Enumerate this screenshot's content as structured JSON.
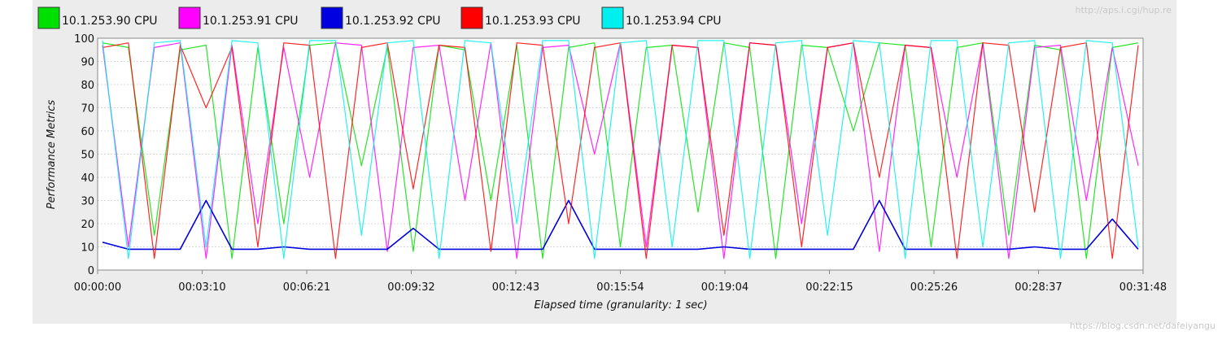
{
  "chart_data": {
    "type": "line",
    "title": "",
    "xlabel": "Elapsed time (granularity: 1 sec)",
    "ylabel": "Performance Metrics",
    "ylim": [
      0,
      100
    ],
    "yticks": [
      0,
      10,
      20,
      30,
      40,
      50,
      60,
      70,
      80,
      90,
      100
    ],
    "x_tick_labels": [
      "00:00:00",
      "00:03:10",
      "00:06:21",
      "00:09:32",
      "00:12:43",
      "00:15:54",
      "00:19:04",
      "00:22:15",
      "00:25:26",
      "00:28:37",
      "00:31:48"
    ],
    "grid": true,
    "legend_position": "top-left",
    "series": [
      {
        "name": "10.1.253.90 CPU",
        "color": "#00e000",
        "values": [
          98,
          96,
          15,
          95,
          97,
          5,
          96,
          20,
          97,
          98,
          45,
          96,
          8,
          97,
          95,
          30,
          97,
          5,
          96,
          98,
          10,
          96,
          97,
          25,
          98,
          96,
          5,
          97,
          96,
          60,
          98,
          97,
          10,
          96,
          98,
          15,
          97,
          95,
          5,
          96,
          98
        ]
      },
      {
        "name": "10.1.253.91 CPU",
        "color": "#ff00ff",
        "values": [
          97,
          10,
          96,
          98,
          5,
          97,
          20,
          96,
          40,
          98,
          97,
          8,
          96,
          97,
          30,
          98,
          5,
          96,
          97,
          50,
          98,
          10,
          97,
          96,
          5,
          98,
          97,
          20,
          96,
          98,
          8,
          97,
          96,
          40,
          98,
          5,
          96,
          97,
          30,
          96,
          45
        ]
      },
      {
        "name": "10.1.253.92 CPU",
        "color": "#0000e0",
        "values": [
          12,
          9,
          9,
          9,
          30,
          9,
          9,
          10,
          9,
          9,
          9,
          9,
          18,
          9,
          9,
          9,
          9,
          9,
          30,
          9,
          9,
          9,
          9,
          9,
          10,
          9,
          9,
          9,
          9,
          9,
          30,
          9,
          9,
          9,
          9,
          9,
          10,
          9,
          9,
          22,
          9
        ]
      },
      {
        "name": "10.1.253.93 CPU",
        "color": "#ff0000",
        "values": [
          96,
          98,
          5,
          97,
          70,
          96,
          10,
          98,
          97,
          5,
          96,
          98,
          35,
          97,
          96,
          8,
          98,
          97,
          20,
          96,
          98,
          5,
          97,
          96,
          15,
          98,
          97,
          10,
          96,
          98,
          40,
          97,
          96,
          5,
          98,
          97,
          25,
          96,
          98,
          5,
          97
        ]
      },
      {
        "name": "10.1.253.94 CPU",
        "color": "#00f0f0",
        "values": [
          99,
          5,
          98,
          99,
          10,
          99,
          98,
          5,
          99,
          99,
          15,
          98,
          99,
          5,
          99,
          98,
          20,
          99,
          99,
          5,
          98,
          99,
          10,
          99,
          99,
          5,
          98,
          99,
          15,
          99,
          98,
          5,
          99,
          99,
          10,
          98,
          99,
          5,
          99,
          98,
          10
        ]
      }
    ]
  },
  "watermarks": {
    "top_right": "http://aps.i.cgi/hup.re",
    "bottom_right": "https://blog.csdn.net/dafeiyangu"
  }
}
